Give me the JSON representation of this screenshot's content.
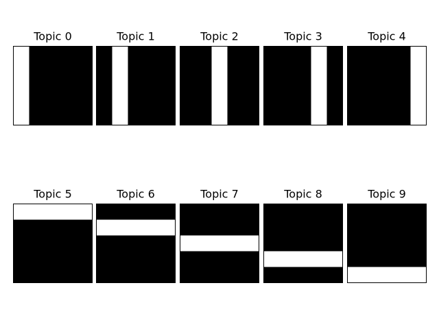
{
  "chart_data": {
    "type": "heatmap",
    "grid": false,
    "colors": {
      "on": "#ffffff",
      "off": "#000000",
      "frame": "#000000"
    },
    "panels": [
      {
        "title": "Topic 0",
        "bar_orientation": "vertical",
        "bar_index": 0,
        "matrix_size": 5
      },
      {
        "title": "Topic 1",
        "bar_orientation": "vertical",
        "bar_index": 1,
        "matrix_size": 5
      },
      {
        "title": "Topic 2",
        "bar_orientation": "vertical",
        "bar_index": 2,
        "matrix_size": 5
      },
      {
        "title": "Topic 3",
        "bar_orientation": "vertical",
        "bar_index": 3,
        "matrix_size": 5
      },
      {
        "title": "Topic 4",
        "bar_orientation": "vertical",
        "bar_index": 4,
        "matrix_size": 5
      },
      {
        "title": "Topic 5",
        "bar_orientation": "horizontal",
        "bar_index": 0,
        "matrix_size": 5
      },
      {
        "title": "Topic 6",
        "bar_orientation": "horizontal",
        "bar_index": 1,
        "matrix_size": 5
      },
      {
        "title": "Topic 7",
        "bar_orientation": "horizontal",
        "bar_index": 2,
        "matrix_size": 5
      },
      {
        "title": "Topic 8",
        "bar_orientation": "horizontal",
        "bar_index": 3,
        "matrix_size": 5
      },
      {
        "title": "Topic 9",
        "bar_orientation": "horizontal",
        "bar_index": 4,
        "matrix_size": 5
      }
    ]
  }
}
